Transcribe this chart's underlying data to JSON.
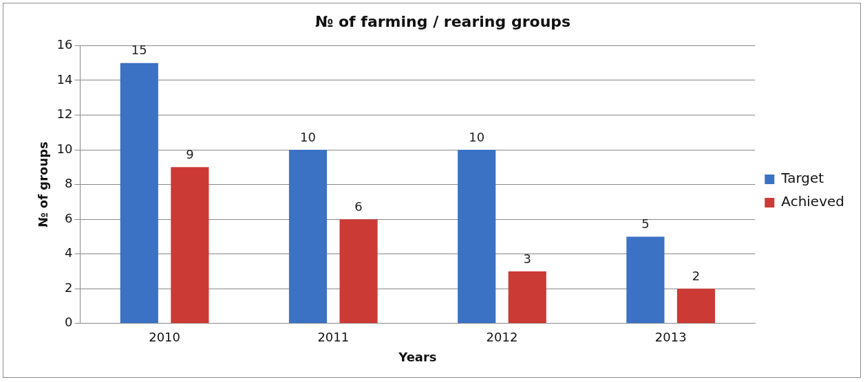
{
  "chart_data": {
    "type": "bar",
    "title": "№ of farming / rearing groups",
    "xlabel": "Years",
    "ylabel": "№ of groups",
    "categories": [
      "2010",
      "2011",
      "2012",
      "2013"
    ],
    "series": [
      {
        "name": "Target",
        "color": "#3c72c4",
        "values": [
          15,
          10,
          10,
          5
        ]
      },
      {
        "name": "Achieved",
        "color": "#cc3a36",
        "values": [
          9,
          6,
          3,
          2
        ]
      }
    ],
    "ylim": [
      0,
      16
    ],
    "yticks": [
      0,
      2,
      4,
      6,
      8,
      10,
      12,
      14,
      16
    ],
    "grid": "y",
    "legend": "right",
    "data_labels": true
  }
}
